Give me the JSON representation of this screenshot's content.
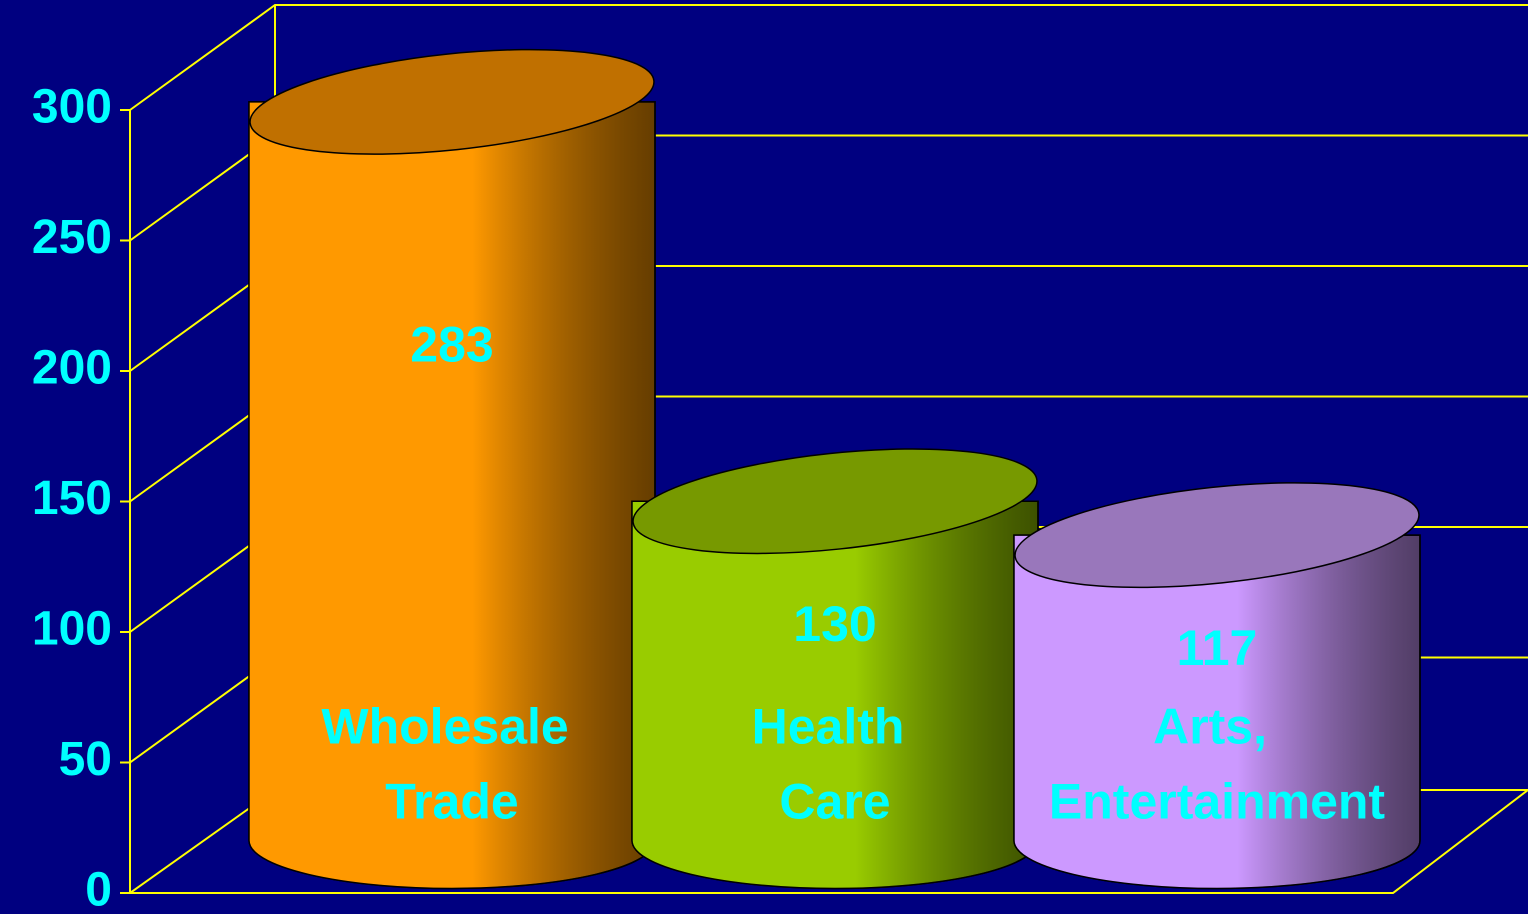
{
  "chart_data": {
    "type": "bar",
    "categories": [
      "Wholesale Trade",
      "Health Care",
      "Arts, Entertainment"
    ],
    "values": [
      283,
      130,
      117
    ],
    "colors": [
      "#ff9900",
      "#99cc00",
      "#cc99ff"
    ],
    "top_colors": [
      "#c07000",
      "#779900",
      "#9977bb"
    ],
    "ylim": [
      0,
      300
    ],
    "yticks": [
      0,
      50,
      100,
      150,
      200,
      250,
      300
    ],
    "grid": true
  }
}
